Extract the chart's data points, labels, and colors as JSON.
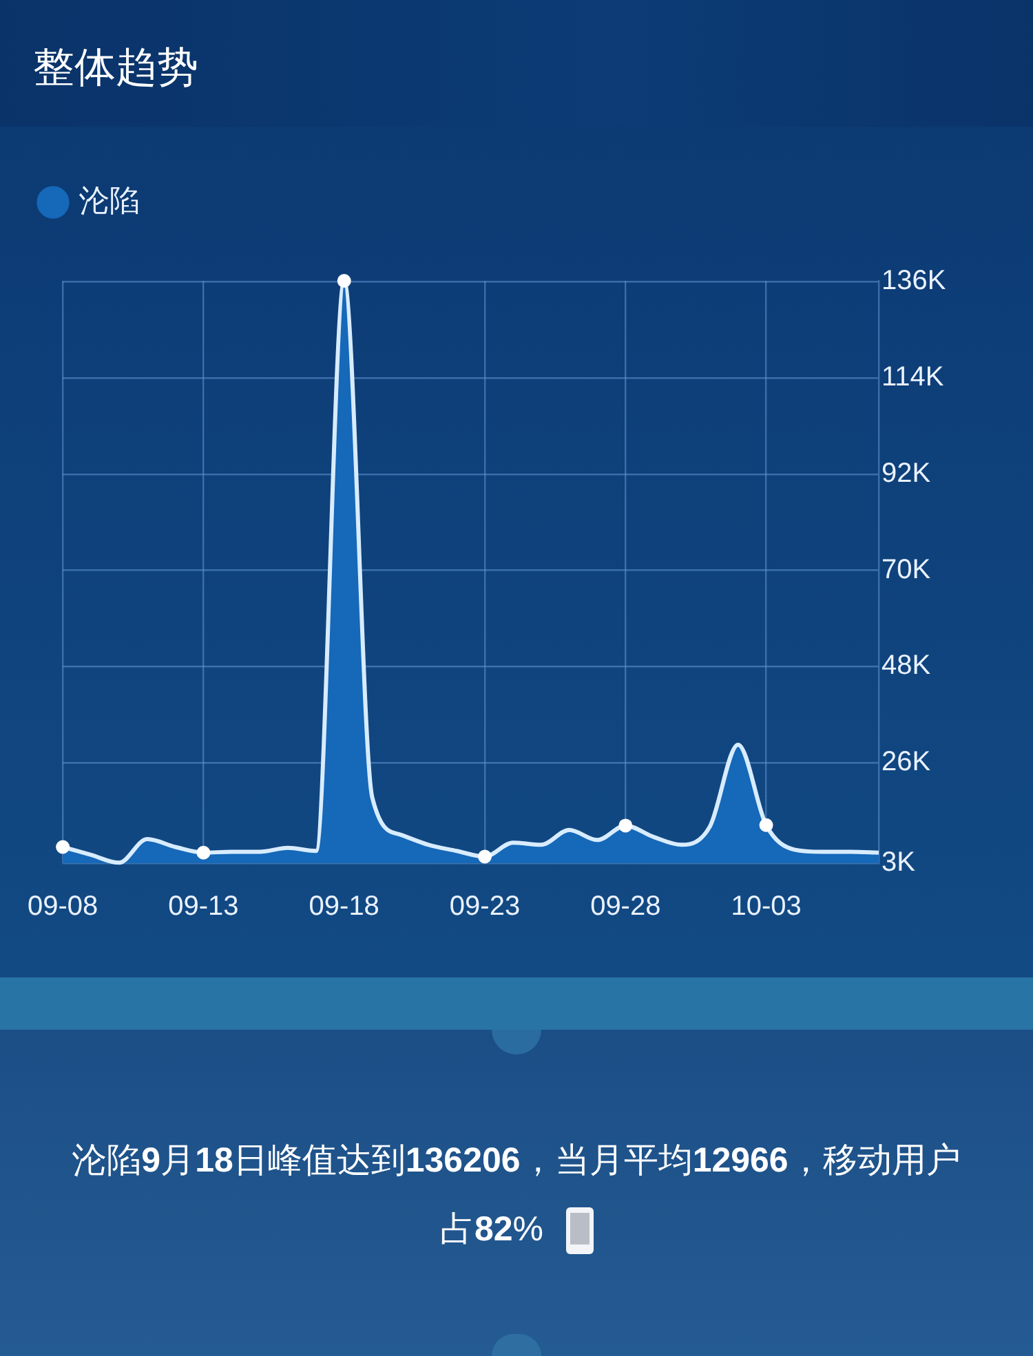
{
  "chart_data": {
    "type": "area",
    "title": "整体趋势",
    "categories": [
      "09-08",
      null,
      null,
      null,
      null,
      "09-13",
      null,
      null,
      null,
      null,
      "09-18",
      null,
      null,
      null,
      null,
      "09-23",
      null,
      null,
      null,
      null,
      "09-28",
      null,
      null,
      null,
      null,
      "10-03",
      null,
      null,
      null,
      null
    ],
    "series": [
      {
        "name": "沦陷",
        "color": "#1668b8",
        "values": [
          6700,
          4900,
          3100,
          8500,
          6700,
          5400,
          5600,
          5600,
          6500,
          5800,
          136206,
          18000,
          9500,
          7200,
          5800,
          4500,
          7700,
          7200,
          10600,
          8300,
          11600,
          9000,
          7200,
          11400,
          30100,
          11700,
          6100,
          5600,
          5600,
          5400
        ]
      }
    ],
    "ylim": [
      3000,
      136206
    ],
    "yticks": [
      {
        "value": 3000,
        "label": "3K"
      },
      {
        "value": 26000,
        "label": "26K"
      },
      {
        "value": 48000,
        "label": "48K"
      },
      {
        "value": 70000,
        "label": "70K"
      },
      {
        "value": 92000,
        "label": "92K"
      },
      {
        "value": 114000,
        "label": "114K"
      },
      {
        "value": 136000,
        "label": "136K"
      }
    ],
    "grid": true,
    "legend": "top left",
    "annotations": [
      "沦陷9月18日峰值达到136206，当月平均12966，移动用户占82%"
    ]
  }
}
